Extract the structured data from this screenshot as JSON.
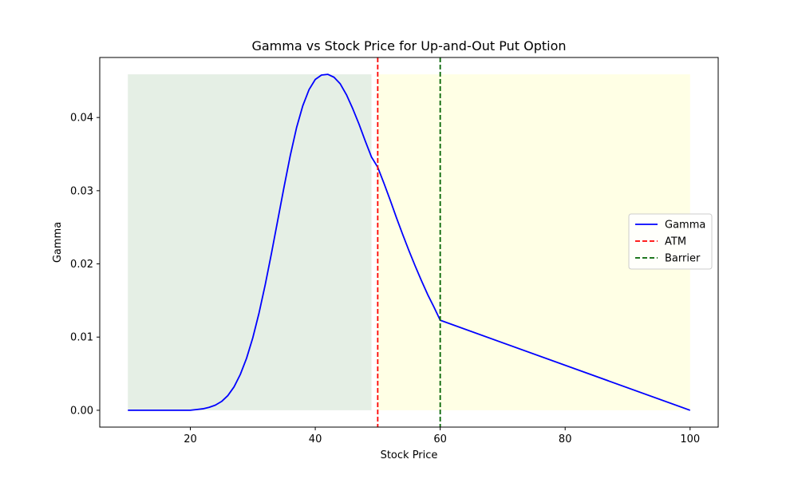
{
  "chart_data": {
    "type": "line",
    "title": "Gamma vs Stock Price for Up-and-Out Put Option",
    "xlabel": "Stock Price",
    "ylabel": "Gamma",
    "xlim": [
      5.5,
      104.5
    ],
    "ylim": [
      -0.0023,
      0.0482
    ],
    "xticks": [
      20,
      40,
      60,
      80,
      100
    ],
    "xtick_labels": [
      "20",
      "40",
      "60",
      "80",
      "100"
    ],
    "yticks": [
      0.0,
      0.01,
      0.02,
      0.03,
      0.04
    ],
    "ytick_labels": [
      "0.00",
      "0.01",
      "0.02",
      "0.03",
      "0.04"
    ],
    "grid": false,
    "legend_position": "center-right",
    "series": [
      {
        "name": "Gamma",
        "style": "solid",
        "color": "#0000ff",
        "x": [
          10,
          20,
          21,
          22,
          23,
          24,
          25,
          26,
          27,
          28,
          29,
          30,
          31,
          32,
          33,
          34,
          35,
          36,
          37,
          38,
          39,
          40,
          41,
          42,
          43,
          44,
          45,
          46,
          47,
          48,
          49,
          50,
          51,
          52,
          53,
          54,
          55,
          56,
          57,
          58,
          59,
          60,
          100
        ],
        "y": [
          0.0,
          0.0,
          0.0001,
          0.0002,
          0.0004,
          0.0007,
          0.0012,
          0.002,
          0.0032,
          0.0049,
          0.0071,
          0.0099,
          0.0133,
          0.0172,
          0.0215,
          0.026,
          0.0305,
          0.0348,
          0.0386,
          0.0416,
          0.0438,
          0.0452,
          0.0458,
          0.0459,
          0.0455,
          0.0446,
          0.0431,
          0.0412,
          0.0391,
          0.0368,
          0.0346,
          0.0332,
          0.031,
          0.0287,
          0.0263,
          0.024,
          0.0218,
          0.0197,
          0.0177,
          0.0158,
          0.0141,
          0.0123,
          0.0
        ]
      },
      {
        "name": "ATM",
        "style": "dashed",
        "color": "#ff0000",
        "x_value": 50
      },
      {
        "name": "Barrier",
        "style": "dashed",
        "color": "#006400",
        "x_value": 60
      }
    ],
    "shaded_regions": [
      {
        "x_start": 10,
        "x_end": 49,
        "y_start": 0.0,
        "y_end": 0.0459,
        "color": "#006400",
        "opacity": 0.1
      },
      {
        "x_start": 50,
        "x_end": 100,
        "y_start": 0.0,
        "y_end": 0.0459,
        "color": "#ffff00",
        "opacity": 0.1
      }
    ]
  }
}
